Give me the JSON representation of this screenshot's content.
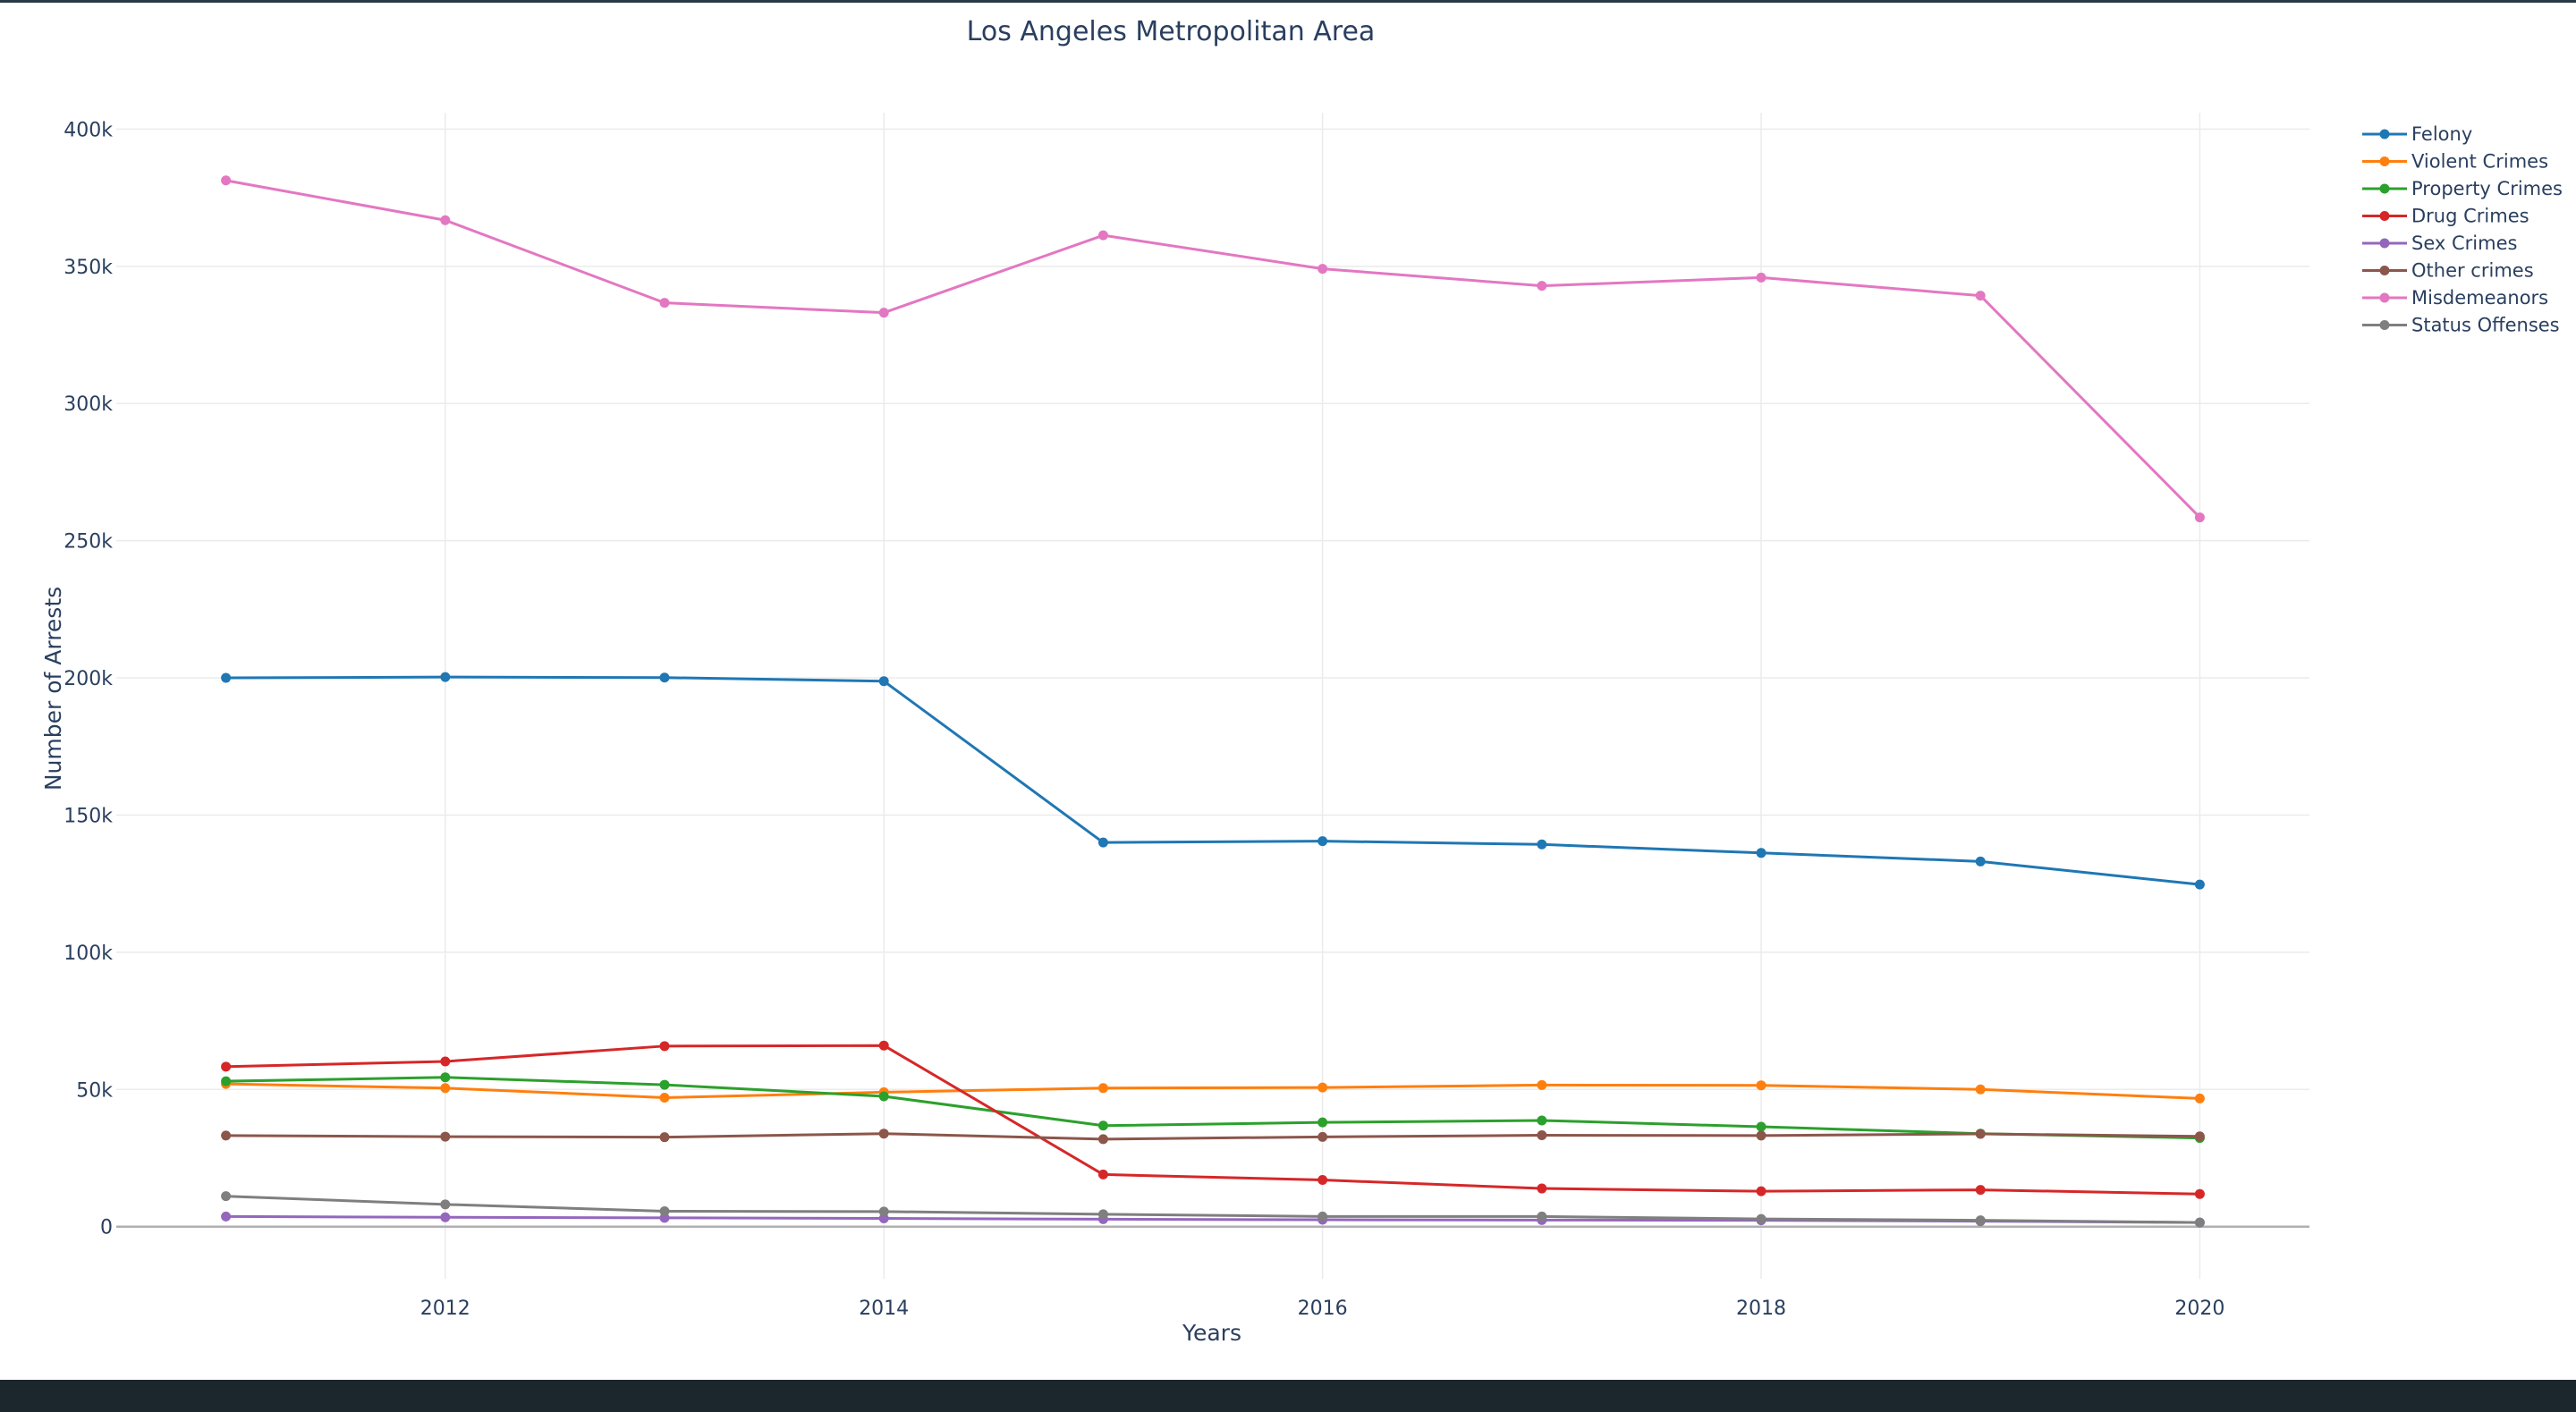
{
  "chart_data": {
    "type": "line",
    "title": "Los Angeles Metropolitan Area",
    "xlabel": "Years",
    "ylabel": "Number of Arrests",
    "x": [
      2011,
      2012,
      2013,
      2014,
      2015,
      2016,
      2017,
      2018,
      2019,
      2020
    ],
    "xlim": [
      2010.5,
      2020.5
    ],
    "ylim": [
      -19000,
      406000
    ],
    "x_ticks": [
      2012,
      2014,
      2016,
      2018,
      2020
    ],
    "x_tick_labels": [
      "2012",
      "2014",
      "2016",
      "2018",
      "2020"
    ],
    "y_ticks": [
      0,
      50000,
      100000,
      150000,
      200000,
      250000,
      300000,
      350000,
      400000
    ],
    "y_tick_labels": [
      "0",
      "50k",
      "100k",
      "150k",
      "200k",
      "250k",
      "300k",
      "350k",
      "400k"
    ],
    "grid": true,
    "legend_position": "top-right",
    "series": [
      {
        "name": "Felony",
        "color": "#1f77b4",
        "values": [
          200000,
          200300,
          200100,
          198800,
          140000,
          140500,
          139300,
          136200,
          133100,
          124700
        ]
      },
      {
        "name": "Violent Crimes",
        "color": "#ff7f0e",
        "values": [
          52000,
          50500,
          47000,
          49000,
          50500,
          50700,
          51600,
          51500,
          50000,
          46700
        ]
      },
      {
        "name": "Property Crimes",
        "color": "#2ca02c",
        "values": [
          53000,
          54400,
          51700,
          47500,
          36800,
          38000,
          38700,
          36400,
          33900,
          32300
        ]
      },
      {
        "name": "Drug Crimes",
        "color": "#d62728",
        "values": [
          58300,
          60200,
          65800,
          66000,
          19000,
          17000,
          13900,
          12900,
          13400,
          11900
        ]
      },
      {
        "name": "Sex Crimes",
        "color": "#9467bd",
        "values": [
          3700,
          3400,
          3200,
          3000,
          2700,
          2500,
          2400,
          2300,
          2000,
          1500
        ]
      },
      {
        "name": "Other crimes",
        "color": "#8c564b",
        "values": [
          33200,
          32800,
          32600,
          33900,
          31900,
          32700,
          33300,
          33200,
          33800,
          32900
        ]
      },
      {
        "name": "Misdemeanors",
        "color": "#e377c2",
        "values": [
          381300,
          366800,
          336700,
          333100,
          361300,
          349100,
          342900,
          345900,
          339300,
          258500
        ]
      },
      {
        "name": "Status Offenses",
        "color": "#7f7f7f",
        "values": [
          11100,
          8100,
          5600,
          5500,
          4500,
          3700,
          3700,
          2800,
          2300,
          1500
        ]
      }
    ]
  }
}
